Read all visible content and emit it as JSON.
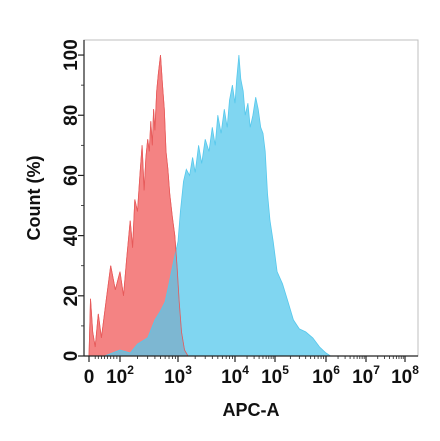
{
  "chart_data": {
    "type": "area",
    "title": "",
    "xlabel": "APC-A",
    "ylabel": "Count  (%)",
    "x_scale": "biexponential",
    "xlim": [
      0,
      100000000
    ],
    "ylim": [
      0,
      105
    ],
    "x_ticks": [
      {
        "value": 0,
        "base": "0",
        "exp": ""
      },
      {
        "value": 100,
        "base": "10",
        "exp": "2"
      },
      {
        "value": 1000,
        "base": "10",
        "exp": "3"
      },
      {
        "value": 10000,
        "base": "10",
        "exp": "4"
      },
      {
        "value": 100000,
        "base": "10",
        "exp": "5"
      },
      {
        "value": 1000000,
        "base": "10",
        "exp": "6"
      },
      {
        "value": 10000000,
        "base": "10",
        "exp": "7"
      },
      {
        "value": 100000000,
        "base": "10",
        "exp": "8"
      }
    ],
    "y_ticks": [
      "0",
      "20",
      "40",
      "60",
      "80",
      "100"
    ],
    "grid": false,
    "series": [
      {
        "color": "#f26d6d",
        "points": [
          [
            0,
            0
          ],
          [
            5,
            19
          ],
          [
            12,
            8
          ],
          [
            20,
            3
          ],
          [
            30,
            14
          ],
          [
            40,
            6
          ],
          [
            55,
            18
          ],
          [
            70,
            30
          ],
          [
            85,
            22
          ],
          [
            100,
            28
          ],
          [
            115,
            20
          ],
          [
            130,
            32
          ],
          [
            150,
            45
          ],
          [
            165,
            36
          ],
          [
            180,
            52
          ],
          [
            200,
            48
          ],
          [
            220,
            60
          ],
          [
            240,
            70
          ],
          [
            260,
            55
          ],
          [
            280,
            66
          ],
          [
            300,
            72
          ],
          [
            320,
            68
          ],
          [
            340,
            78
          ],
          [
            360,
            70
          ],
          [
            380,
            82
          ],
          [
            400,
            75
          ],
          [
            430,
            88
          ],
          [
            460,
            94
          ],
          [
            500,
            100
          ],
          [
            540,
            90
          ],
          [
            580,
            82
          ],
          [
            620,
            68
          ],
          [
            670,
            62
          ],
          [
            720,
            54
          ],
          [
            800,
            46
          ],
          [
            880,
            40
          ],
          [
            960,
            30
          ],
          [
            1050,
            18
          ],
          [
            1150,
            8
          ],
          [
            1300,
            2
          ],
          [
            1500,
            0
          ]
        ]
      },
      {
        "color": "#56c8ec",
        "points": [
          [
            0,
            0
          ],
          [
            50,
            0
          ],
          [
            100,
            2
          ],
          [
            150,
            1
          ],
          [
            200,
            4
          ],
          [
            300,
            6
          ],
          [
            400,
            12
          ],
          [
            500,
            15
          ],
          [
            600,
            18
          ],
          [
            700,
            24
          ],
          [
            850,
            32
          ],
          [
            1000,
            38
          ],
          [
            1100,
            48
          ],
          [
            1250,
            58
          ],
          [
            1400,
            62
          ],
          [
            1600,
            60
          ],
          [
            1800,
            66
          ],
          [
            2000,
            61
          ],
          [
            2300,
            70
          ],
          [
            2600,
            64
          ],
          [
            3000,
            72
          ],
          [
            3500,
            68
          ],
          [
            4000,
            76
          ],
          [
            4500,
            70
          ],
          [
            5000,
            80
          ],
          [
            5700,
            74
          ],
          [
            6500,
            82
          ],
          [
            7300,
            76
          ],
          [
            8000,
            85
          ],
          [
            9000,
            90
          ],
          [
            10000,
            84
          ],
          [
            11000,
            92
          ],
          [
            12500,
            100
          ],
          [
            14000,
            92
          ],
          [
            16000,
            88
          ],
          [
            18000,
            80
          ],
          [
            21000,
            84
          ],
          [
            24000,
            76
          ],
          [
            28000,
            80
          ],
          [
            33000,
            86
          ],
          [
            38000,
            82
          ],
          [
            44000,
            76
          ],
          [
            50000,
            74
          ],
          [
            57000,
            68
          ],
          [
            65000,
            54
          ],
          [
            75000,
            45
          ],
          [
            90000,
            38
          ],
          [
            110000,
            28
          ],
          [
            140000,
            24
          ],
          [
            180000,
            18
          ],
          [
            230000,
            12
          ],
          [
            300000,
            9
          ],
          [
            400000,
            8
          ],
          [
            550000,
            6
          ],
          [
            750000,
            3
          ],
          [
            1000000,
            1
          ],
          [
            1300000,
            0
          ]
        ]
      }
    ]
  }
}
